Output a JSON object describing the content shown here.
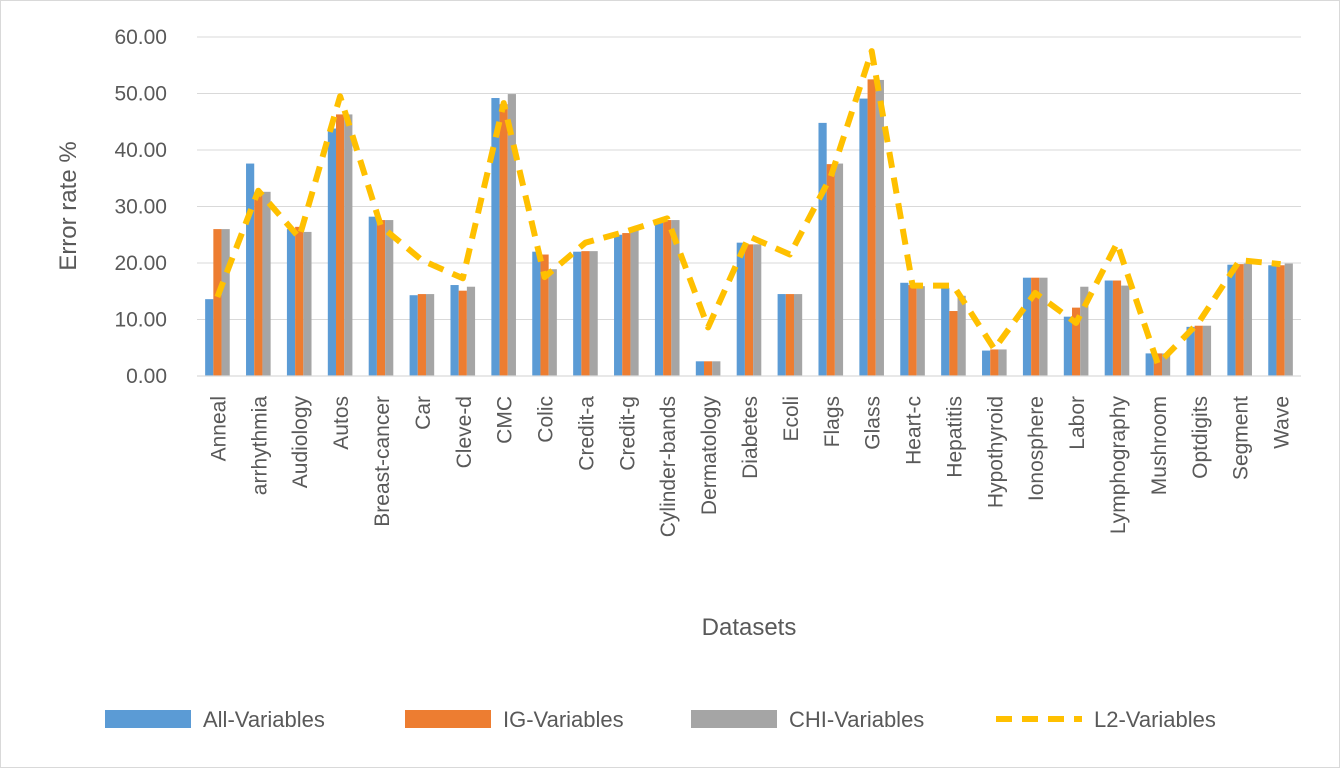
{
  "chart_data": {
    "type": "bar",
    "title": "",
    "xlabel": "Datasets",
    "ylabel": "Error rate %",
    "ylim": [
      0,
      60
    ],
    "yticks": [
      "0.00",
      "10.00",
      "20.00",
      "30.00",
      "40.00",
      "50.00",
      "60.00"
    ],
    "grid": true,
    "legend_position": "bottom",
    "categories": [
      "Anneal",
      "arrhythmia",
      "Audiology",
      "Autos",
      "Breast-cancer",
      "Car",
      "Cleve-d",
      "CMC",
      "Colic",
      "Credit-a",
      "Credit-g",
      "Cylinder-bands",
      "Dermatology",
      "Diabetes",
      "Ecoli",
      "Flags",
      "Glass",
      "Heart-c",
      "Hepatitis",
      "Hypothyroid",
      "Ionosphere",
      "Labor",
      "Lymphography",
      "Mushroom",
      "Optdigits",
      "Segment",
      "Wave"
    ],
    "series": [
      {
        "name": "All-Variables",
        "type": "bar",
        "color": "#5b9bd5",
        "values": [
          13.6,
          37.6,
          26.0,
          43.8,
          28.2,
          14.3,
          16.1,
          49.2,
          22.0,
          22.0,
          25.0,
          27.6,
          2.6,
          23.6,
          14.5,
          44.8,
          49.1,
          16.5,
          15.6,
          4.5,
          17.4,
          10.5,
          16.9,
          4.0,
          8.7,
          19.7,
          19.6
        ]
      },
      {
        "name": "IG-Variables",
        "type": "bar",
        "color": "#ed7d31",
        "values": [
          26.0,
          32.5,
          26.4,
          46.3,
          27.6,
          14.5,
          15.1,
          48.1,
          21.5,
          22.1,
          25.3,
          27.6,
          2.6,
          23.3,
          14.5,
          37.5,
          52.5,
          16.1,
          11.5,
          4.7,
          17.4,
          12.1,
          16.9,
          4.0,
          8.9,
          19.8,
          19.6
        ]
      },
      {
        "name": "CHI-Variables",
        "type": "bar",
        "color": "#a5a5a5",
        "values": [
          26.0,
          32.6,
          25.5,
          46.3,
          27.6,
          14.5,
          15.8,
          49.9,
          18.9,
          22.1,
          25.9,
          27.6,
          2.6,
          23.3,
          14.5,
          37.6,
          52.4,
          15.9,
          14.2,
          4.7,
          17.4,
          15.8,
          16.0,
          4.0,
          8.9,
          19.9,
          19.9
        ]
      },
      {
        "name": "L2-Variables",
        "type": "line",
        "style": "dashed",
        "color": "#ffc000",
        "values": [
          14.0,
          32.8,
          24.5,
          49.5,
          26.5,
          20.5,
          17.3,
          48.3,
          17.5,
          23.6,
          25.6,
          27.9,
          8.6,
          24.7,
          21.5,
          35.3,
          57.5,
          16.0,
          16.0,
          4.8,
          14.7,
          9.4,
          23.5,
          2.1,
          9.5,
          20.5,
          19.8
        ]
      }
    ]
  }
}
